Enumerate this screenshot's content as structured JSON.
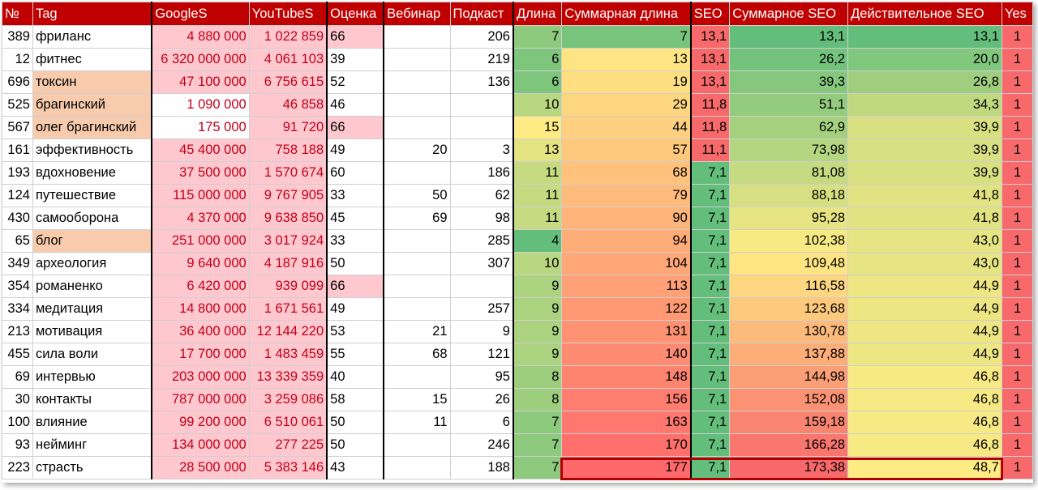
{
  "headers": [
    "№",
    "Tag",
    "GoogleS",
    "YouTubeS",
    "Оценка",
    "Вебинар",
    "Подкаст",
    "Длина",
    "Суммарная длина",
    "SEO",
    "Суммарное SEO",
    "Действительное SEO",
    "Yes"
  ],
  "rows": [
    {
      "no": "389",
      "tag": "фриланс",
      "google": "4 880 000",
      "youtube": "1 022 859",
      "score": "66",
      "webinar": "",
      "podcast": "206",
      "len": "7",
      "sumlen": "7",
      "seo": "13,1",
      "sumseo": "13,1",
      "realseo": "13,1",
      "yes": "1",
      "tagPeach": false,
      "googlePink": true,
      "scorePink": true
    },
    {
      "no": "12",
      "tag": "фитнес",
      "google": "6 320 000 000",
      "youtube": "4 061 103",
      "score": "39",
      "webinar": "",
      "podcast": "219",
      "len": "6",
      "sumlen": "13",
      "seo": "13,1",
      "sumseo": "26,2",
      "realseo": "20,0",
      "yes": "1",
      "tagPeach": false,
      "googlePink": true,
      "scorePink": false
    },
    {
      "no": "696",
      "tag": "токсин",
      "google": "47 100 000",
      "youtube": "6 756 615",
      "score": "52",
      "webinar": "",
      "podcast": "136",
      "len": "6",
      "sumlen": "19",
      "seo": "13,1",
      "sumseo": "39,3",
      "realseo": "26,8",
      "yes": "1",
      "tagPeach": true,
      "googlePink": true,
      "scorePink": false
    },
    {
      "no": "525",
      "tag": "брагинский",
      "google": "1 090 000",
      "youtube": "46 858",
      "score": "46",
      "webinar": "",
      "podcast": "",
      "len": "10",
      "sumlen": "29",
      "seo": "11,8",
      "sumseo": "51,1",
      "realseo": "34,3",
      "yes": "1",
      "tagPeach": true,
      "googlePink": false,
      "scorePink": false
    },
    {
      "no": "567",
      "tag": "олег брагинский",
      "google": "175 000",
      "youtube": "91 720",
      "score": "66",
      "webinar": "",
      "podcast": "",
      "len": "15",
      "sumlen": "44",
      "seo": "11,8",
      "sumseo": "62,9",
      "realseo": "39,9",
      "yes": "1",
      "tagPeach": true,
      "googlePink": false,
      "scorePink": true
    },
    {
      "no": "161",
      "tag": "эффективность",
      "google": "45 400 000",
      "youtube": "758 188",
      "score": "49",
      "webinar": "20",
      "podcast": "3",
      "len": "13",
      "sumlen": "57",
      "seo": "11,1",
      "sumseo": "73,98",
      "realseo": "39,9",
      "yes": "1",
      "tagPeach": false,
      "googlePink": true,
      "scorePink": false
    },
    {
      "no": "193",
      "tag": "вдохновение",
      "google": "37 500 000",
      "youtube": "1 570 674",
      "score": "60",
      "webinar": "",
      "podcast": "186",
      "len": "11",
      "sumlen": "68",
      "seo": "7,1",
      "sumseo": "81,08",
      "realseo": "39,9",
      "yes": "1",
      "tagPeach": false,
      "googlePink": true,
      "scorePink": false
    },
    {
      "no": "124",
      "tag": "путешествие",
      "google": "115 000 000",
      "youtube": "9 767 905",
      "score": "33",
      "webinar": "50",
      "podcast": "62",
      "len": "11",
      "sumlen": "79",
      "seo": "7,1",
      "sumseo": "88,18",
      "realseo": "41,8",
      "yes": "1",
      "tagPeach": false,
      "googlePink": true,
      "scorePink": false
    },
    {
      "no": "430",
      "tag": "самооборона",
      "google": "4 370 000",
      "youtube": "9 638 850",
      "score": "45",
      "webinar": "69",
      "podcast": "98",
      "len": "11",
      "sumlen": "90",
      "seo": "7,1",
      "sumseo": "95,28",
      "realseo": "41,8",
      "yes": "1",
      "tagPeach": false,
      "googlePink": true,
      "scorePink": false
    },
    {
      "no": "65",
      "tag": "блог",
      "google": "251 000 000",
      "youtube": "3 017 924",
      "score": "33",
      "webinar": "",
      "podcast": "285",
      "len": "4",
      "sumlen": "94",
      "seo": "7,1",
      "sumseo": "102,38",
      "realseo": "43,0",
      "yes": "1",
      "tagPeach": true,
      "googlePink": true,
      "scorePink": false
    },
    {
      "no": "349",
      "tag": "археология",
      "google": "9 640 000",
      "youtube": "4 187 916",
      "score": "50",
      "webinar": "",
      "podcast": "307",
      "len": "10",
      "sumlen": "104",
      "seo": "7,1",
      "sumseo": "109,48",
      "realseo": "43,0",
      "yes": "1",
      "tagPeach": false,
      "googlePink": true,
      "scorePink": false
    },
    {
      "no": "354",
      "tag": "романенко",
      "google": "6 420 000",
      "youtube": "939 099",
      "score": "66",
      "webinar": "",
      "podcast": "",
      "len": "9",
      "sumlen": "113",
      "seo": "7,1",
      "sumseo": "116,58",
      "realseo": "44,9",
      "yes": "1",
      "tagPeach": false,
      "googlePink": true,
      "scorePink": true
    },
    {
      "no": "334",
      "tag": "медитация",
      "google": "14 800 000",
      "youtube": "1 671 561",
      "score": "49",
      "webinar": "",
      "podcast": "257",
      "len": "9",
      "sumlen": "122",
      "seo": "7,1",
      "sumseo": "123,68",
      "realseo": "44,9",
      "yes": "1",
      "tagPeach": false,
      "googlePink": true,
      "scorePink": false
    },
    {
      "no": "213",
      "tag": "мотивация",
      "google": "36 400 000",
      "youtube": "12 144 220",
      "score": "53",
      "webinar": "21",
      "podcast": "9",
      "len": "9",
      "sumlen": "131",
      "seo": "7,1",
      "sumseo": "130,78",
      "realseo": "44,9",
      "yes": "1",
      "tagPeach": false,
      "googlePink": true,
      "scorePink": false
    },
    {
      "no": "455",
      "tag": "сила воли",
      "google": "17 700 000",
      "youtube": "1 483 459",
      "score": "55",
      "webinar": "68",
      "podcast": "121",
      "len": "9",
      "sumlen": "140",
      "seo": "7,1",
      "sumseo": "137,88",
      "realseo": "44,9",
      "yes": "1",
      "tagPeach": false,
      "googlePink": true,
      "scorePink": false
    },
    {
      "no": "69",
      "tag": "интервью",
      "google": "203 000 000",
      "youtube": "13 339 359",
      "score": "40",
      "webinar": "",
      "podcast": "95",
      "len": "8",
      "sumlen": "148",
      "seo": "7,1",
      "sumseo": "144,98",
      "realseo": "46,8",
      "yes": "1",
      "tagPeach": false,
      "googlePink": true,
      "scorePink": false
    },
    {
      "no": "30",
      "tag": "контакты",
      "google": "787 000 000",
      "youtube": "3 259 086",
      "score": "58",
      "webinar": "15",
      "podcast": "26",
      "len": "8",
      "sumlen": "156",
      "seo": "7,1",
      "sumseo": "152,08",
      "realseo": "46,8",
      "yes": "1",
      "tagPeach": false,
      "googlePink": true,
      "scorePink": false
    },
    {
      "no": "100",
      "tag": "влияние",
      "google": "99 200 000",
      "youtube": "6 510 061",
      "score": "50",
      "webinar": "11",
      "podcast": "6",
      "len": "7",
      "sumlen": "163",
      "seo": "7,1",
      "sumseo": "159,18",
      "realseo": "46,8",
      "yes": "1",
      "tagPeach": false,
      "googlePink": true,
      "scorePink": false
    },
    {
      "no": "93",
      "tag": "нейминг",
      "google": "134 000 000",
      "youtube": "277 225",
      "score": "50",
      "webinar": "",
      "podcast": "246",
      "len": "7",
      "sumlen": "170",
      "seo": "7,1",
      "sumseo": "166,28",
      "realseo": "46,8",
      "yes": "1",
      "tagPeach": false,
      "googlePink": true,
      "scorePink": false
    },
    {
      "no": "223",
      "tag": "страсть",
      "google": "28 500 000",
      "youtube": "5 383 146",
      "score": "43",
      "webinar": "",
      "podcast": "188",
      "len": "7",
      "sumlen": "177",
      "seo": "7,1",
      "sumseo": "173,38",
      "realseo": "48,7",
      "yes": "1",
      "tagPeach": false,
      "googlePink": true,
      "scorePink": false
    }
  ],
  "colors": {
    "header": "#c00000",
    "pink": "#ffc7ce",
    "peach": "#f8cbad",
    "redText": "#c0001a",
    "yes": "#f8696b",
    "highlight": "#b00000"
  }
}
